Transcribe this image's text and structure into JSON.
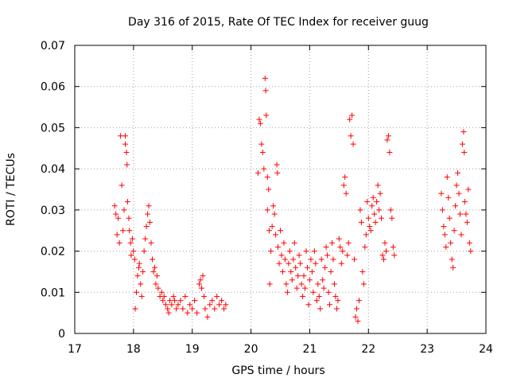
{
  "chart_data": {
    "type": "scatter",
    "title": "Day 316 of 2015, Rate Of TEC Index for receiver guug",
    "xlabel": "GPS time / hours",
    "ylabel": "ROTI / TECUs",
    "xlim": [
      17,
      24
    ],
    "ylim": [
      0,
      0.07
    ],
    "x_ticks": [
      "17",
      "18",
      "19",
      "20",
      "21",
      "22",
      "23",
      "24"
    ],
    "y_ticks": [
      "0",
      "0.01",
      "0.02",
      "0.03",
      "0.04",
      "0.05",
      "0.06",
      "0.07"
    ],
    "grid": true,
    "marker": "+",
    "marker_color": "#ff0000",
    "series": [
      {
        "name": "ROTI",
        "points": [
          [
            17.68,
            0.031
          ],
          [
            17.7,
            0.029
          ],
          [
            17.72,
            0.024
          ],
          [
            17.74,
            0.028
          ],
          [
            17.76,
            0.022
          ],
          [
            17.78,
            0.048
          ],
          [
            17.8,
            0.036
          ],
          [
            17.82,
            0.025
          ],
          [
            17.84,
            0.03
          ],
          [
            17.86,
            0.046
          ],
          [
            17.86,
            0.048
          ],
          [
            17.88,
            0.044
          ],
          [
            17.89,
            0.041
          ],
          [
            17.9,
            0.032
          ],
          [
            17.92,
            0.028
          ],
          [
            17.93,
            0.025
          ],
          [
            17.95,
            0.022
          ],
          [
            17.96,
            0.019
          ],
          [
            17.98,
            0.023
          ],
          [
            18.0,
            0.02
          ],
          [
            18.02,
            0.018
          ],
          [
            18.03,
            0.006
          ],
          [
            18.05,
            0.01
          ],
          [
            18.07,
            0.014
          ],
          [
            18.09,
            0.016
          ],
          [
            18.1,
            0.017
          ],
          [
            18.12,
            0.012
          ],
          [
            18.14,
            0.009
          ],
          [
            18.16,
            0.015
          ],
          [
            18.18,
            0.02
          ],
          [
            18.2,
            0.023
          ],
          [
            18.22,
            0.026
          ],
          [
            18.24,
            0.029
          ],
          [
            18.26,
            0.031
          ],
          [
            18.28,
            0.027
          ],
          [
            18.3,
            0.022
          ],
          [
            18.32,
            0.018
          ],
          [
            18.34,
            0.015
          ],
          [
            18.36,
            0.016
          ],
          [
            18.38,
            0.012
          ],
          [
            18.4,
            0.014
          ],
          [
            18.42,
            0.011
          ],
          [
            18.45,
            0.009
          ],
          [
            18.48,
            0.01
          ],
          [
            18.5,
            0.008
          ],
          [
            18.52,
            0.009
          ],
          [
            18.55,
            0.007
          ],
          [
            18.58,
            0.006
          ],
          [
            18.6,
            0.005
          ],
          [
            18.62,
            0.008
          ],
          [
            18.65,
            0.007
          ],
          [
            18.68,
            0.009
          ],
          [
            18.7,
            0.008
          ],
          [
            18.73,
            0.006
          ],
          [
            18.76,
            0.007
          ],
          [
            18.8,
            0.008
          ],
          [
            18.84,
            0.006
          ],
          [
            18.88,
            0.009
          ],
          [
            18.92,
            0.005
          ],
          [
            18.96,
            0.007
          ],
          [
            19.0,
            0.006
          ],
          [
            19.04,
            0.008
          ],
          [
            19.08,
            0.005
          ],
          [
            19.12,
            0.012
          ],
          [
            19.14,
            0.013
          ],
          [
            19.16,
            0.011
          ],
          [
            19.18,
            0.014
          ],
          [
            19.2,
            0.009
          ],
          [
            19.22,
            0.006
          ],
          [
            19.26,
            0.004
          ],
          [
            19.3,
            0.007
          ],
          [
            19.34,
            0.008
          ],
          [
            19.38,
            0.006
          ],
          [
            19.42,
            0.009
          ],
          [
            19.46,
            0.007
          ],
          [
            19.5,
            0.008
          ],
          [
            19.54,
            0.006
          ],
          [
            19.57,
            0.007
          ],
          [
            20.12,
            0.039
          ],
          [
            20.14,
            0.052
          ],
          [
            20.16,
            0.051
          ],
          [
            20.18,
            0.046
          ],
          [
            20.2,
            0.044
          ],
          [
            20.22,
            0.04
          ],
          [
            20.24,
            0.062
          ],
          [
            20.25,
            0.059
          ],
          [
            20.26,
            0.053
          ],
          [
            20.28,
            0.038
          ],
          [
            20.28,
            0.03
          ],
          [
            20.3,
            0.035
          ],
          [
            20.31,
            0.025
          ],
          [
            20.32,
            0.012
          ],
          [
            20.34,
            0.02
          ],
          [
            20.36,
            0.026
          ],
          [
            20.38,
            0.031
          ],
          [
            20.4,
            0.029
          ],
          [
            20.42,
            0.024
          ],
          [
            20.44,
            0.041
          ],
          [
            20.45,
            0.039
          ],
          [
            20.46,
            0.021
          ],
          [
            20.48,
            0.017
          ],
          [
            20.5,
            0.025
          ],
          [
            20.52,
            0.019
          ],
          [
            20.54,
            0.015
          ],
          [
            20.56,
            0.022
          ],
          [
            20.58,
            0.018
          ],
          [
            20.6,
            0.012
          ],
          [
            20.62,
            0.01
          ],
          [
            20.64,
            0.017
          ],
          [
            20.66,
            0.02
          ],
          [
            20.68,
            0.015
          ],
          [
            20.7,
            0.013
          ],
          [
            20.72,
            0.018
          ],
          [
            20.74,
            0.022
          ],
          [
            20.76,
            0.016
          ],
          [
            20.78,
            0.011
          ],
          [
            20.8,
            0.014
          ],
          [
            20.82,
            0.019
          ],
          [
            20.84,
            0.017
          ],
          [
            20.86,
            0.012
          ],
          [
            20.88,
            0.009
          ],
          [
            20.9,
            0.014
          ],
          [
            20.92,
            0.011
          ],
          [
            20.94,
            0.02
          ],
          [
            20.96,
            0.016
          ],
          [
            20.98,
            0.007
          ],
          [
            21.0,
            0.013
          ],
          [
            21.02,
            0.018
          ],
          [
            21.04,
            0.015
          ],
          [
            21.06,
            0.01
          ],
          [
            21.08,
            0.02
          ],
          [
            21.1,
            0.017
          ],
          [
            21.12,
            0.008
          ],
          [
            21.14,
            0.012
          ],
          [
            21.16,
            0.009
          ],
          [
            21.18,
            0.006
          ],
          [
            21.2,
            0.018
          ],
          [
            21.22,
            0.013
          ],
          [
            21.24,
            0.011
          ],
          [
            21.26,
            0.016
          ],
          [
            21.28,
            0.021
          ],
          [
            21.3,
            0.019
          ],
          [
            21.32,
            0.01
          ],
          [
            21.34,
            0.007
          ],
          [
            21.36,
            0.015
          ],
          [
            21.38,
            0.022
          ],
          [
            21.4,
            0.018
          ],
          [
            21.42,
            0.012
          ],
          [
            21.44,
            0.009
          ],
          [
            21.46,
            0.006
          ],
          [
            21.48,
            0.008
          ],
          [
            21.5,
            0.023
          ],
          [
            21.52,
            0.021
          ],
          [
            21.54,
            0.017
          ],
          [
            21.56,
            0.02
          ],
          [
            21.58,
            0.036
          ],
          [
            21.6,
            0.038
          ],
          [
            21.62,
            0.034
          ],
          [
            21.64,
            0.019
          ],
          [
            21.66,
            0.022
          ],
          [
            21.68,
            0.052
          ],
          [
            21.7,
            0.048
          ],
          [
            21.72,
            0.053
          ],
          [
            21.74,
            0.046
          ],
          [
            21.76,
            0.018
          ],
          [
            21.78,
            0.004
          ],
          [
            21.8,
            0.006
          ],
          [
            21.82,
            0.003
          ],
          [
            21.84,
            0.008
          ],
          [
            21.86,
            0.03
          ],
          [
            21.88,
            0.027
          ],
          [
            21.9,
            0.015
          ],
          [
            21.92,
            0.012
          ],
          [
            21.94,
            0.021
          ],
          [
            21.96,
            0.024
          ],
          [
            21.98,
            0.032
          ],
          [
            22.0,
            0.028
          ],
          [
            22.02,
            0.026
          ],
          [
            22.04,
            0.025
          ],
          [
            22.06,
            0.031
          ],
          [
            22.08,
            0.033
          ],
          [
            22.1,
            0.029
          ],
          [
            22.12,
            0.027
          ],
          [
            22.14,
            0.032
          ],
          [
            22.16,
            0.036
          ],
          [
            22.18,
            0.03
          ],
          [
            22.2,
            0.034
          ],
          [
            22.22,
            0.028
          ],
          [
            22.24,
            0.019
          ],
          [
            22.26,
            0.018
          ],
          [
            22.28,
            0.022
          ],
          [
            22.3,
            0.02
          ],
          [
            22.32,
            0.047
          ],
          [
            22.34,
            0.048
          ],
          [
            22.36,
            0.044
          ],
          [
            22.38,
            0.03
          ],
          [
            22.4,
            0.028
          ],
          [
            22.42,
            0.021
          ],
          [
            22.44,
            0.019
          ],
          [
            23.24,
            0.034
          ],
          [
            23.26,
            0.03
          ],
          [
            23.28,
            0.026
          ],
          [
            23.3,
            0.024
          ],
          [
            23.32,
            0.021
          ],
          [
            23.34,
            0.038
          ],
          [
            23.36,
            0.033
          ],
          [
            23.38,
            0.028
          ],
          [
            23.4,
            0.022
          ],
          [
            23.42,
            0.018
          ],
          [
            23.44,
            0.016
          ],
          [
            23.46,
            0.025
          ],
          [
            23.48,
            0.031
          ],
          [
            23.5,
            0.036
          ],
          [
            23.52,
            0.039
          ],
          [
            23.54,
            0.034
          ],
          [
            23.56,
            0.029
          ],
          [
            23.58,
            0.024
          ],
          [
            23.6,
            0.046
          ],
          [
            23.62,
            0.049
          ],
          [
            23.63,
            0.044
          ],
          [
            23.64,
            0.032
          ],
          [
            23.66,
            0.029
          ],
          [
            23.68,
            0.027
          ],
          [
            23.7,
            0.035
          ],
          [
            23.72,
            0.022
          ],
          [
            23.74,
            0.02
          ]
        ]
      }
    ]
  }
}
